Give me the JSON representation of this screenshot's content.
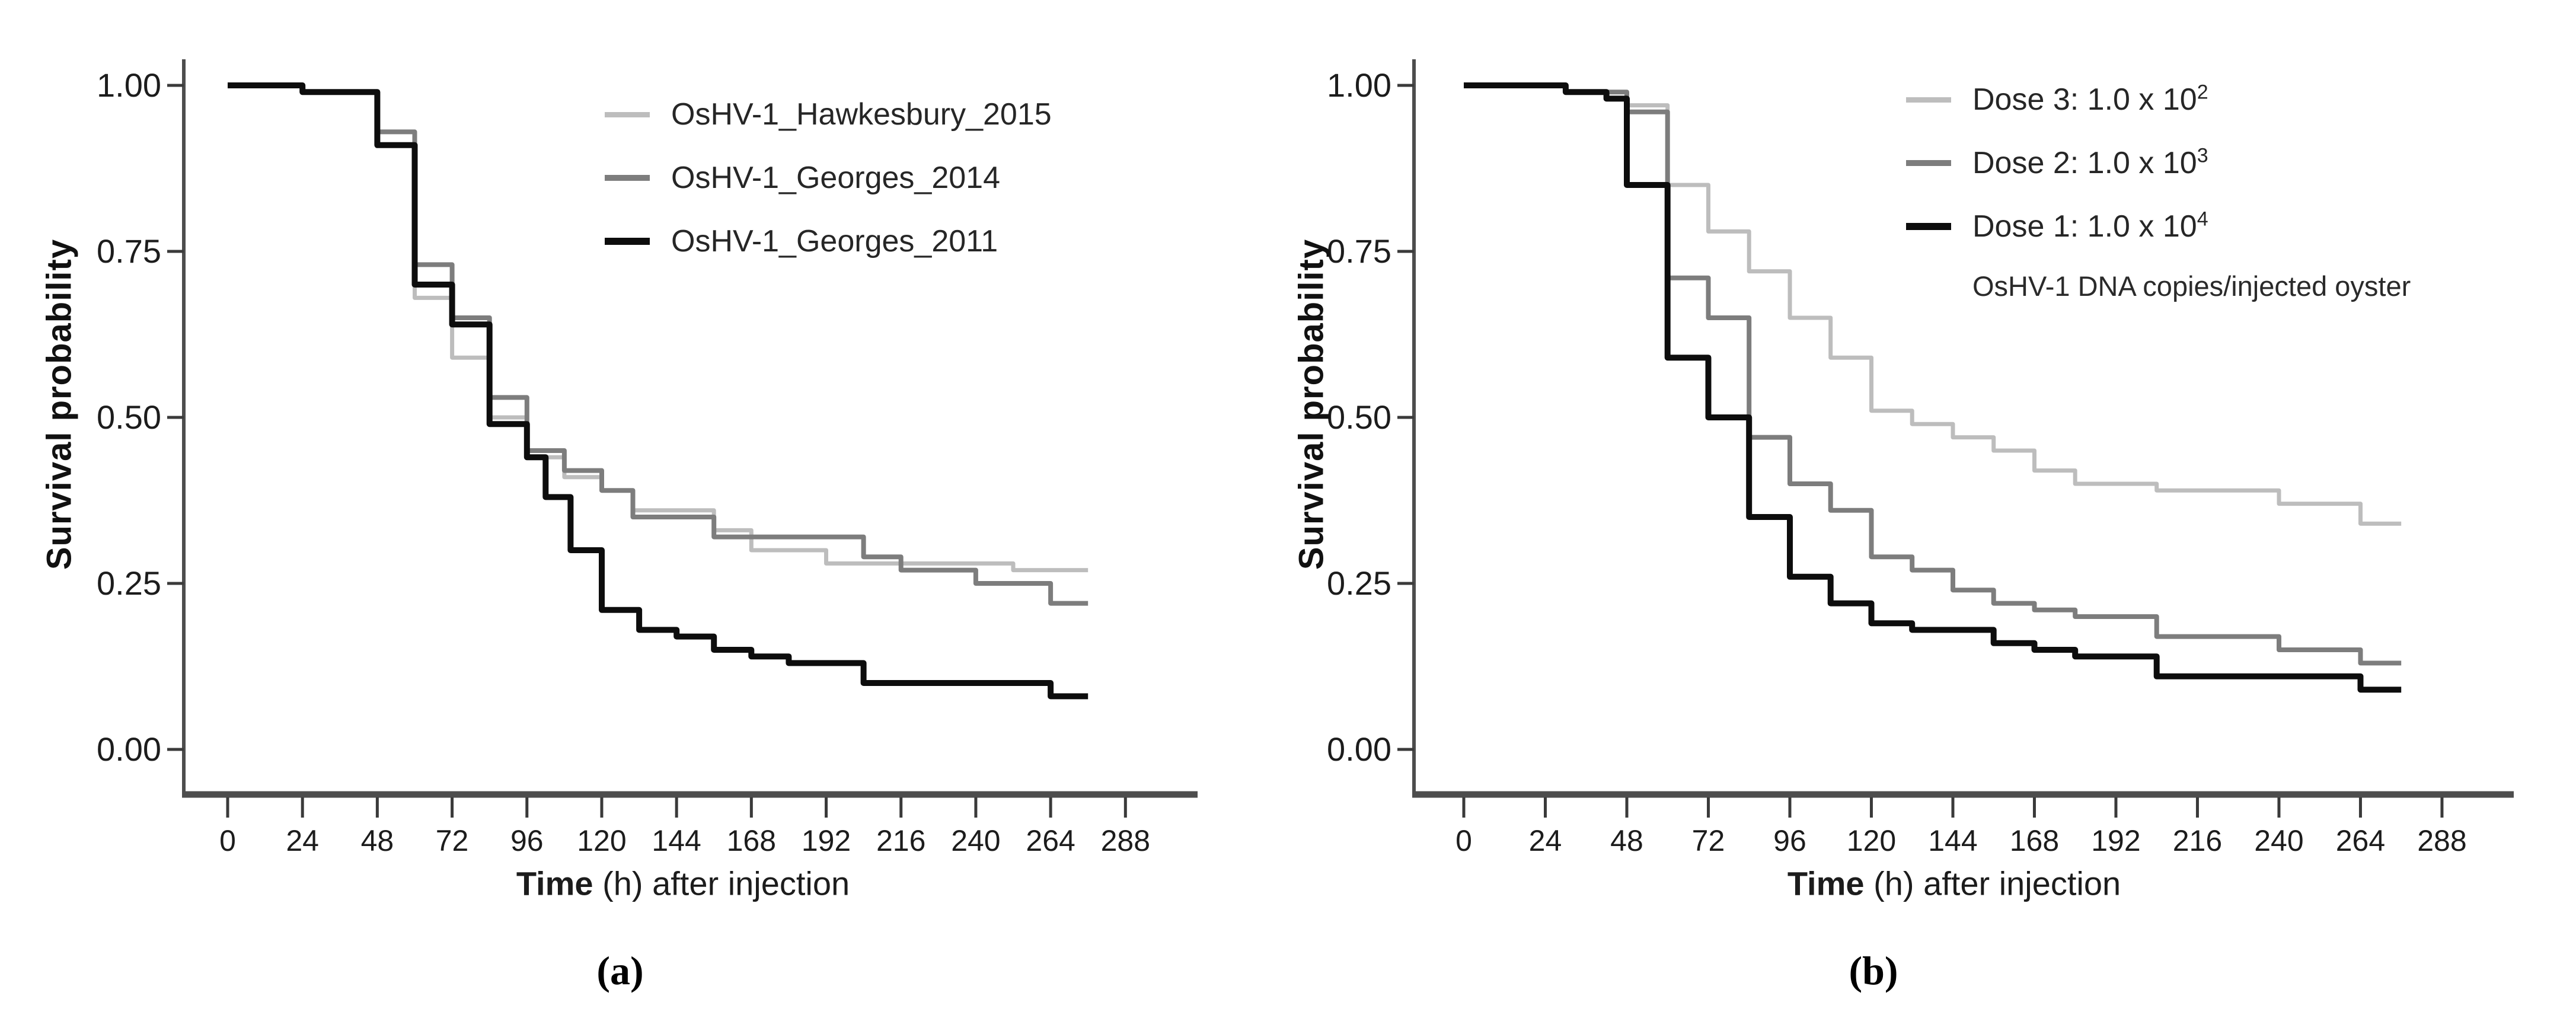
{
  "page": {
    "background": "#ffffff"
  },
  "chart_data": [
    {
      "type": "line",
      "subtype": "kaplan-meier-step-survival",
      "panel_label": "(a)",
      "title": "",
      "ylabel": "Survival probability",
      "xlabel_bold": "Time",
      "xlabel_rest": " (h) after injection",
      "xlim": [
        0,
        288
      ],
      "ylim": [
        0.0,
        1.0
      ],
      "grid": false,
      "legend_position": "top-right-inside",
      "xticks": [
        0,
        24,
        48,
        72,
        96,
        120,
        144,
        168,
        192,
        216,
        240,
        264,
        288
      ],
      "yticks": [
        1.0,
        0.75,
        0.5,
        0.25,
        0.0
      ],
      "axis_color": "#4d4d4d",
      "tick_color": "#3a3a3a",
      "series": [
        {
          "name": "OsHV-1_Hawkesbury_2015",
          "color": "#bdbdbd",
          "line_width": 7,
          "points": [
            [
              0,
              1.0
            ],
            [
              24,
              0.99
            ],
            [
              48,
              0.93
            ],
            [
              60,
              0.68
            ],
            [
              72,
              0.59
            ],
            [
              84,
              0.5
            ],
            [
              96,
              0.44
            ],
            [
              108,
              0.41
            ],
            [
              120,
              0.39
            ],
            [
              130,
              0.36
            ],
            [
              156,
              0.33
            ],
            [
              168,
              0.3
            ],
            [
              192,
              0.28
            ],
            [
              252,
              0.27
            ],
            [
              276,
              0.27
            ]
          ]
        },
        {
          "name": "OsHV-1_Georges_2014",
          "color": "#7d7d7d",
          "line_width": 8,
          "points": [
            [
              0,
              1.0
            ],
            [
              24,
              0.99
            ],
            [
              48,
              0.93
            ],
            [
              60,
              0.73
            ],
            [
              72,
              0.65
            ],
            [
              84,
              0.53
            ],
            [
              96,
              0.45
            ],
            [
              108,
              0.42
            ],
            [
              120,
              0.39
            ],
            [
              130,
              0.35
            ],
            [
              156,
              0.32
            ],
            [
              204,
              0.29
            ],
            [
              216,
              0.27
            ],
            [
              240,
              0.25
            ],
            [
              264,
              0.22
            ],
            [
              276,
              0.22
            ]
          ]
        },
        {
          "name": "OsHV-1_Georges_2011",
          "color": "#0d0d0d",
          "line_width": 10,
          "points": [
            [
              0,
              1.0
            ],
            [
              24,
              0.99
            ],
            [
              48,
              0.91
            ],
            [
              60,
              0.7
            ],
            [
              72,
              0.64
            ],
            [
              84,
              0.49
            ],
            [
              96,
              0.44
            ],
            [
              102,
              0.38
            ],
            [
              110,
              0.3
            ],
            [
              120,
              0.21
            ],
            [
              132,
              0.18
            ],
            [
              144,
              0.17
            ],
            [
              156,
              0.15
            ],
            [
              168,
              0.14
            ],
            [
              180,
              0.13
            ],
            [
              204,
              0.1
            ],
            [
              264,
              0.08
            ],
            [
              276,
              0.08
            ]
          ]
        }
      ]
    },
    {
      "type": "line",
      "subtype": "kaplan-meier-step-survival",
      "panel_label": "(b)",
      "title": "",
      "ylabel": "Survival probability",
      "xlabel_bold": "Time",
      "xlabel_rest": " (h) after injection",
      "xlim": [
        0,
        288
      ],
      "ylim": [
        0.0,
        1.0
      ],
      "grid": false,
      "legend_position": "top-right-inside",
      "legend_note": "OsHV-1 DNA copies/injected oyster",
      "xticks": [
        0,
        24,
        48,
        72,
        96,
        120,
        144,
        168,
        192,
        216,
        240,
        264,
        288
      ],
      "yticks": [
        1.0,
        0.75,
        0.5,
        0.25,
        0.0
      ],
      "axis_color": "#4d4d4d",
      "tick_color": "#3a3a3a",
      "series": [
        {
          "name": "Dose 3: 1.0 x 10",
          "sup": "2",
          "color": "#bdbdbd",
          "line_width": 7,
          "points": [
            [
              0,
              1.0
            ],
            [
              30,
              0.99
            ],
            [
              48,
              0.97
            ],
            [
              60,
              0.85
            ],
            [
              72,
              0.78
            ],
            [
              84,
              0.72
            ],
            [
              96,
              0.65
            ],
            [
              108,
              0.59
            ],
            [
              120,
              0.51
            ],
            [
              132,
              0.49
            ],
            [
              144,
              0.47
            ],
            [
              156,
              0.45
            ],
            [
              168,
              0.42
            ],
            [
              180,
              0.4
            ],
            [
              204,
              0.39
            ],
            [
              240,
              0.37
            ],
            [
              264,
              0.34
            ],
            [
              276,
              0.34
            ]
          ]
        },
        {
          "name": "Dose 2: 1.0 x 10",
          "sup": "3",
          "color": "#7d7d7d",
          "line_width": 8,
          "points": [
            [
              0,
              1.0
            ],
            [
              30,
              0.99
            ],
            [
              48,
              0.96
            ],
            [
              60,
              0.71
            ],
            [
              72,
              0.65
            ],
            [
              84,
              0.47
            ],
            [
              96,
              0.4
            ],
            [
              108,
              0.36
            ],
            [
              120,
              0.29
            ],
            [
              132,
              0.27
            ],
            [
              144,
              0.24
            ],
            [
              156,
              0.22
            ],
            [
              168,
              0.21
            ],
            [
              180,
              0.2
            ],
            [
              204,
              0.17
            ],
            [
              240,
              0.15
            ],
            [
              264,
              0.13
            ],
            [
              276,
              0.13
            ]
          ]
        },
        {
          "name": "Dose 1: 1.0 x 10",
          "sup": "4",
          "color": "#0d0d0d",
          "line_width": 10,
          "points": [
            [
              0,
              1.0
            ],
            [
              30,
              0.99
            ],
            [
              42,
              0.98
            ],
            [
              48,
              0.85
            ],
            [
              60,
              0.59
            ],
            [
              72,
              0.5
            ],
            [
              84,
              0.35
            ],
            [
              96,
              0.26
            ],
            [
              108,
              0.22
            ],
            [
              120,
              0.19
            ],
            [
              132,
              0.18
            ],
            [
              156,
              0.16
            ],
            [
              168,
              0.15
            ],
            [
              180,
              0.14
            ],
            [
              204,
              0.11
            ],
            [
              264,
              0.09
            ],
            [
              276,
              0.09
            ]
          ]
        }
      ]
    }
  ]
}
